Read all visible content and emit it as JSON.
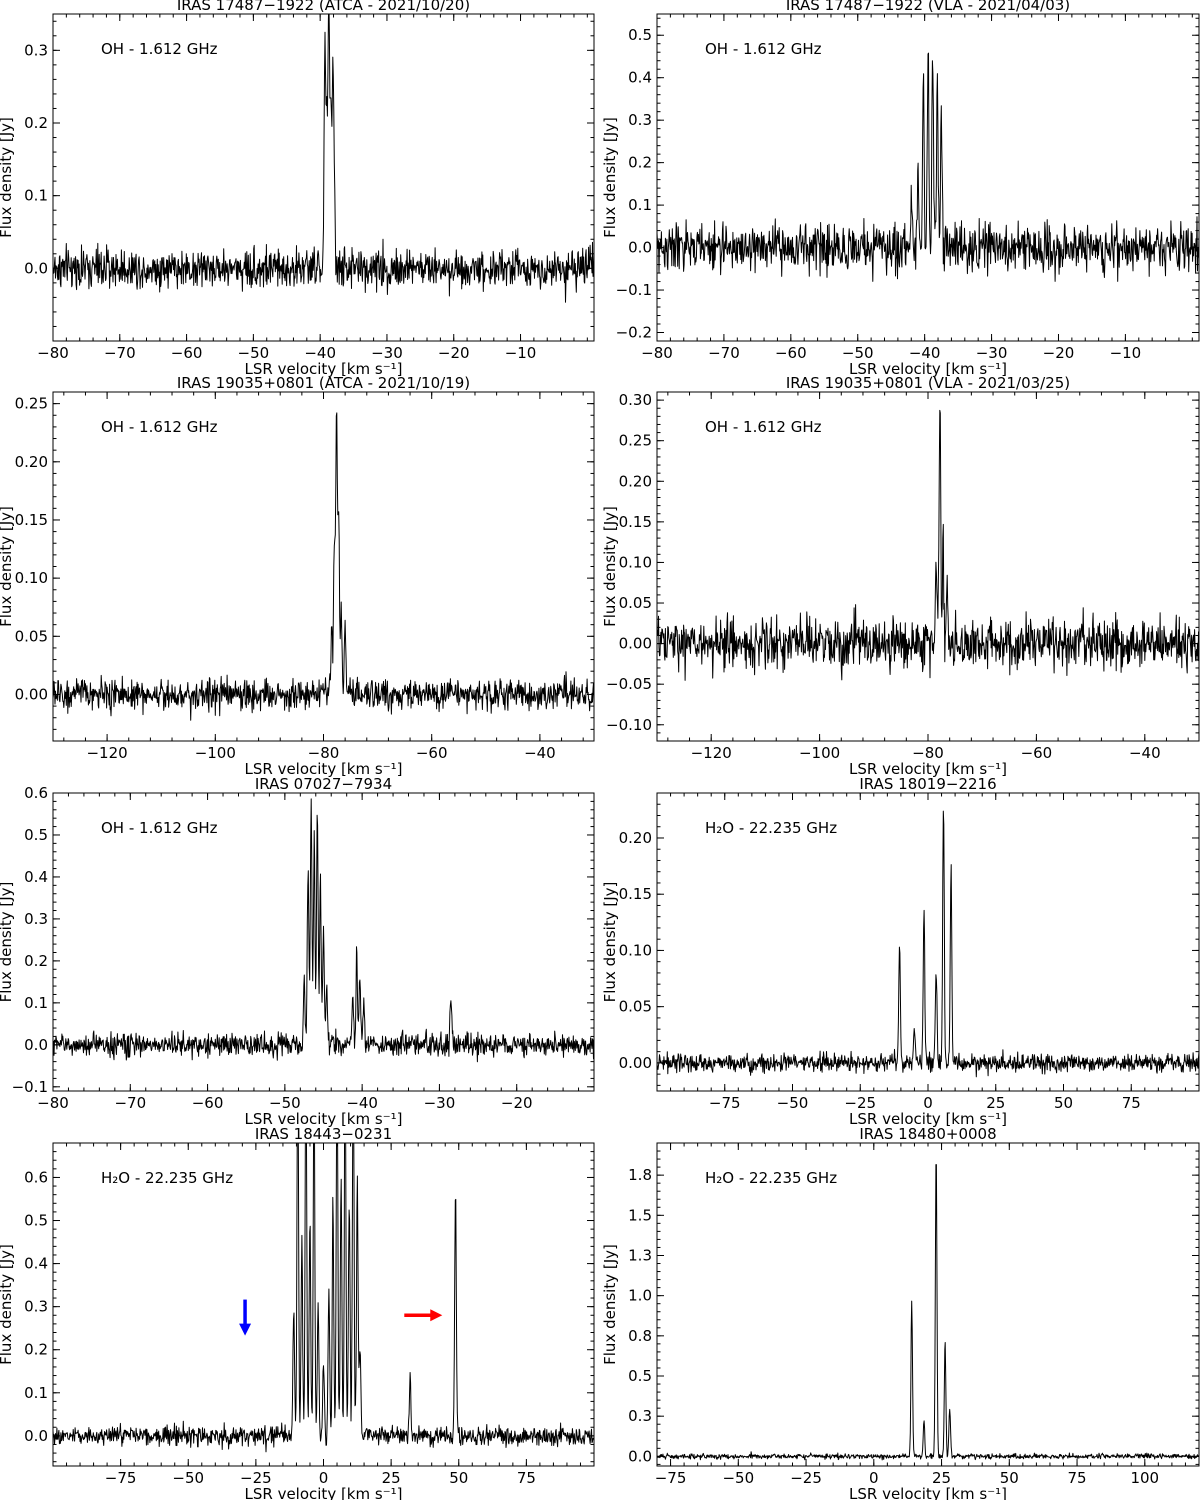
{
  "chart_data": [
    {
      "type": "line",
      "title": "IRAS 17487−1922 (ATCA - 2021/10/20)",
      "annotation": "OH - 1.612 GHz",
      "xlabel": "LSR velocity [km s⁻¹]",
      "ylabel": "Flux density [Jy]",
      "xlim": [
        -80,
        1
      ],
      "ylim": [
        -0.1,
        0.35
      ],
      "xticks": [
        -80,
        -70,
        -60,
        -50,
        -40,
        -30,
        -20,
        -10
      ],
      "yticks": [
        0.0,
        0.1,
        0.2,
        0.3
      ],
      "noise_rms": 0.035,
      "spikes": [
        0.085,
        0.09
      ],
      "peaks": [
        {
          "x": -39.3,
          "y": 0.3
        },
        {
          "x": -39.0,
          "y": 0.22
        },
        {
          "x": -38.7,
          "y": 0.35
        },
        {
          "x": -38.4,
          "y": 0.2
        },
        {
          "x": -38.1,
          "y": 0.25
        },
        {
          "x": -37.9,
          "y": 0.12
        }
      ]
    },
    {
      "type": "line",
      "title": "IRAS 17487−1922 (VLA - 2021/04/03)",
      "annotation": "OH - 1.612 GHz",
      "xlabel": "LSR velocity [km s⁻¹]",
      "ylabel": "Flux density [Jy]",
      "xlim": [
        -80,
        1
      ],
      "ylim": [
        -0.22,
        0.55
      ],
      "xticks": [
        -80,
        -70,
        -60,
        -50,
        -40,
        -30,
        -20,
        -10
      ],
      "yticks": [
        -0.2,
        -0.1,
        0.0,
        0.1,
        0.2,
        0.3,
        0.4,
        0.5
      ],
      "noise_rms": 0.07,
      "spikes": [
        0.17,
        0.18
      ],
      "peaks": [
        {
          "x": -42.0,
          "y": 0.1
        },
        {
          "x": -41.0,
          "y": 0.2
        },
        {
          "x": -40.2,
          "y": 0.4
        },
        {
          "x": -39.5,
          "y": 0.48
        },
        {
          "x": -38.8,
          "y": 0.48
        },
        {
          "x": -38.1,
          "y": 0.4
        },
        {
          "x": -37.5,
          "y": 0.3
        }
      ]
    },
    {
      "type": "line",
      "title": "IRAS 19035+0801 (ATCA - 2021/10/19)",
      "annotation": "OH - 1.612 GHz",
      "xlabel": "LSR velocity [km s⁻¹]",
      "ylabel": "Flux density [Jy]",
      "xlim": [
        -130,
        -30
      ],
      "ylim": [
        -0.04,
        0.26
      ],
      "xticks": [
        -120,
        -100,
        -80,
        -60,
        -40
      ],
      "yticks": [
        0.0,
        0.05,
        0.1,
        0.15,
        0.2,
        0.25
      ],
      "noise_rms": 0.017,
      "spikes": [
        0.05,
        0.045
      ],
      "peaks": [
        {
          "x": -78.5,
          "y": 0.05
        },
        {
          "x": -78.0,
          "y": 0.13
        },
        {
          "x": -77.6,
          "y": 0.25
        },
        {
          "x": -77.2,
          "y": 0.16
        },
        {
          "x": -76.7,
          "y": 0.07
        },
        {
          "x": -76.0,
          "y": 0.06
        }
      ]
    },
    {
      "type": "line",
      "title": "IRAS 19035+0801 (VLA - 2021/03/25)",
      "annotation": "OH - 1.612 GHz",
      "xlabel": "LSR velocity [km s⁻¹]",
      "ylabel": "Flux density [Jy]",
      "xlim": [
        -130,
        -30
      ],
      "ylim": [
        -0.12,
        0.31
      ],
      "xticks": [
        -120,
        -100,
        -80,
        -60,
        -40
      ],
      "yticks": [
        -0.1,
        -0.05,
        0.0,
        0.05,
        0.1,
        0.15,
        0.2,
        0.25,
        0.3
      ],
      "noise_rms": 0.04,
      "spikes": [
        0.11,
        0.11
      ],
      "peaks": [
        {
          "x": -78.5,
          "y": 0.1
        },
        {
          "x": -77.8,
          "y": 0.3
        },
        {
          "x": -77.2,
          "y": 0.12
        },
        {
          "x": -76.5,
          "y": 0.07
        }
      ]
    },
    {
      "type": "line",
      "title": "IRAS 07027−7934",
      "annotation": "OH - 1.612 GHz",
      "xlabel": "LSR velocity [km s⁻¹]",
      "ylabel": "Flux density [Jy]",
      "xlim": [
        -80,
        -10
      ],
      "ylim": [
        -0.11,
        0.6
      ],
      "xticks": [
        -80,
        -70,
        -60,
        -50,
        -40,
        -30,
        -20
      ],
      "yticks": [
        -0.1,
        0.0,
        0.1,
        0.2,
        0.3,
        0.4,
        0.5,
        0.6
      ],
      "noise_rms": 0.035,
      "spikes": [
        0.1,
        0.12
      ],
      "peaks": [
        {
          "x": -47.5,
          "y": 0.15
        },
        {
          "x": -47.0,
          "y": 0.45
        },
        {
          "x": -46.6,
          "y": 0.57
        },
        {
          "x": -46.2,
          "y": 0.5
        },
        {
          "x": -45.8,
          "y": 0.56
        },
        {
          "x": -45.4,
          "y": 0.4
        },
        {
          "x": -45.0,
          "y": 0.3
        },
        {
          "x": -44.6,
          "y": 0.15
        },
        {
          "x": -41.2,
          "y": 0.12
        },
        {
          "x": -40.7,
          "y": 0.22
        },
        {
          "x": -40.3,
          "y": 0.18
        },
        {
          "x": -39.8,
          "y": 0.12
        },
        {
          "x": -28.5,
          "y": 0.12
        }
      ]
    },
    {
      "type": "line",
      "title": "IRAS 18019−2216",
      "annotation": "H₂O - 22.235 GHz",
      "xlabel": "LSR velocity [km s⁻¹]",
      "ylabel": "Flux density [Jy]",
      "xlim": [
        -100,
        100
      ],
      "ylim": [
        -0.025,
        0.24
      ],
      "xticks": [
        -75,
        -50,
        -25,
        0,
        25,
        50,
        75
      ],
      "yticks": [
        0.0,
        0.05,
        0.1,
        0.15,
        0.2
      ],
      "noise_rms": 0.01,
      "spikes": [
        0.03,
        0.03
      ],
      "peaks": [
        {
          "x": -10.5,
          "y": 0.105
        },
        {
          "x": -5.0,
          "y": 0.035
        },
        {
          "x": -1.5,
          "y": 0.14
        },
        {
          "x": 3.0,
          "y": 0.085
        },
        {
          "x": 5.7,
          "y": 0.23
        },
        {
          "x": 8.5,
          "y": 0.175
        }
      ]
    },
    {
      "type": "line",
      "title": "IRAS 18443−0231",
      "annotation": "H₂O - 22.235 GHz",
      "xlabel": "LSR velocity [km s⁻¹]",
      "ylabel": "Flux density [Jy]",
      "xlim": [
        -100,
        100
      ],
      "ylim": [
        -0.07,
        0.68
      ],
      "xticks": [
        -75,
        -50,
        -25,
        0,
        25,
        50,
        75
      ],
      "yticks": [
        0.0,
        0.1,
        0.2,
        0.3,
        0.4,
        0.5,
        0.6
      ],
      "noise_rms": 0.028,
      "spikes": [
        0.09,
        0.1
      ],
      "peaks": [
        {
          "x": -11.0,
          "y": 0.3
        },
        {
          "x": -9.5,
          "y": 0.9
        },
        {
          "x": -8.0,
          "y": 0.45
        },
        {
          "x": -6.5,
          "y": 0.9
        },
        {
          "x": -5.0,
          "y": 0.5
        },
        {
          "x": -3.5,
          "y": 0.9
        },
        {
          "x": -2.0,
          "y": 0.3
        },
        {
          "x": 0.0,
          "y": 0.18
        },
        {
          "x": 2.0,
          "y": 0.35
        },
        {
          "x": 3.5,
          "y": 0.55
        },
        {
          "x": 5.0,
          "y": 0.9
        },
        {
          "x": 6.5,
          "y": 0.6
        },
        {
          "x": 8.0,
          "y": 0.9
        },
        {
          "x": 9.5,
          "y": 0.55
        },
        {
          "x": 11.0,
          "y": 0.9
        },
        {
          "x": 12.5,
          "y": 0.6
        },
        {
          "x": 13.5,
          "y": 0.2
        },
        {
          "x": 32.0,
          "y": 0.14
        },
        {
          "x": 48.8,
          "y": 0.58
        }
      ],
      "arrows": [
        {
          "color": "#0000ff",
          "direction": "down",
          "x": -29,
          "y": 0.27
        },
        {
          "color": "#ff0000",
          "direction": "right",
          "x": 38,
          "y": 0.28
        }
      ]
    },
    {
      "type": "line",
      "title": "IRAS 18480+0008",
      "annotation": "H₂O - 22.235 GHz",
      "xlabel": "LSR velocity [km s⁻¹]",
      "ylabel": "Flux density [Jy]",
      "xlim": [
        -80,
        120
      ],
      "ylim": [
        -0.06,
        1.95
      ],
      "xticks": [
        -75,
        -50,
        -25,
        0,
        25,
        50,
        75,
        100
      ],
      "yticks": [
        0.0,
        0.25,
        0.5,
        0.75,
        1.0,
        1.25,
        1.5,
        1.75
      ],
      "noise_rms": 0.02,
      "spikes": [
        0.05,
        0.05
      ],
      "peaks": [
        {
          "x": 14.0,
          "y": 0.97
        },
        {
          "x": 18.5,
          "y": 0.22
        },
        {
          "x": 23.0,
          "y": 1.9
        },
        {
          "x": 26.3,
          "y": 0.73
        },
        {
          "x": 28.0,
          "y": 0.3
        }
      ]
    }
  ]
}
